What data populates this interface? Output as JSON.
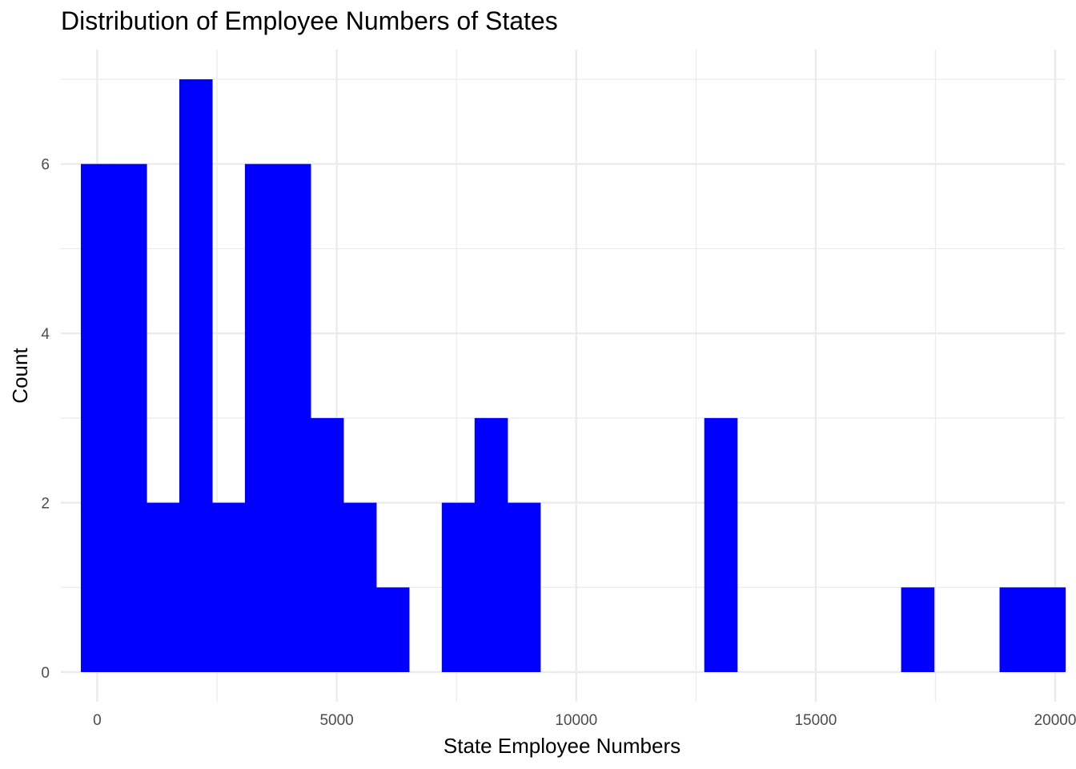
{
  "chart_data": {
    "type": "bar",
    "title": "Distribution of Employee Numbers of States",
    "xlabel": "State Employee Numbers",
    "ylabel": "Count",
    "bar_color": "#0000ff",
    "grid_color": "#ebebeb",
    "grid": true,
    "legend": "none",
    "xlim": [
      -760,
      20200
    ],
    "ylim": [
      -0.35,
      7.35
    ],
    "x_ticks": [
      0,
      5000,
      10000,
      15000,
      20000
    ],
    "x_tick_labels": [
      "0",
      "5000",
      "10000",
      "15000",
      "20000"
    ],
    "y_ticks": [
      0,
      2,
      4,
      6
    ],
    "y_tick_labels": [
      "0",
      "2",
      "4",
      "6"
    ],
    "bin_width": 685,
    "bins": [
      {
        "x0": -342,
        "x1": 343,
        "count": 6
      },
      {
        "x0": 343,
        "x1": 1028,
        "count": 6
      },
      {
        "x0": 1028,
        "x1": 1713,
        "count": 2
      },
      {
        "x0": 1713,
        "x1": 2398,
        "count": 7
      },
      {
        "x0": 2398,
        "x1": 3083,
        "count": 2
      },
      {
        "x0": 3083,
        "x1": 3768,
        "count": 6
      },
      {
        "x0": 3768,
        "x1": 4453,
        "count": 6
      },
      {
        "x0": 4453,
        "x1": 5138,
        "count": 3
      },
      {
        "x0": 5138,
        "x1": 5823,
        "count": 2
      },
      {
        "x0": 5823,
        "x1": 6508,
        "count": 1
      },
      {
        "x0": 6508,
        "x1": 7193,
        "count": 0
      },
      {
        "x0": 7193,
        "x1": 7878,
        "count": 2
      },
      {
        "x0": 7878,
        "x1": 8563,
        "count": 3
      },
      {
        "x0": 8563,
        "x1": 9248,
        "count": 2
      },
      {
        "x0": 9248,
        "x1": 9933,
        "count": 0
      },
      {
        "x0": 9933,
        "x1": 10618,
        "count": 0
      },
      {
        "x0": 10618,
        "x1": 11303,
        "count": 0
      },
      {
        "x0": 11303,
        "x1": 11988,
        "count": 0
      },
      {
        "x0": 11988,
        "x1": 12673,
        "count": 0
      },
      {
        "x0": 12673,
        "x1": 13358,
        "count": 3
      },
      {
        "x0": 13358,
        "x1": 14043,
        "count": 0
      },
      {
        "x0": 14043,
        "x1": 14728,
        "count": 0
      },
      {
        "x0": 14728,
        "x1": 15413,
        "count": 0
      },
      {
        "x0": 15413,
        "x1": 16098,
        "count": 0
      },
      {
        "x0": 16098,
        "x1": 16783,
        "count": 0
      },
      {
        "x0": 16783,
        "x1": 17468,
        "count": 1
      },
      {
        "x0": 17468,
        "x1": 18153,
        "count": 0
      },
      {
        "x0": 18153,
        "x1": 18838,
        "count": 0
      },
      {
        "x0": 18838,
        "x1": 19523,
        "count": 1
      },
      {
        "x0": 19523,
        "x1": 20208,
        "count": 1
      }
    ]
  }
}
